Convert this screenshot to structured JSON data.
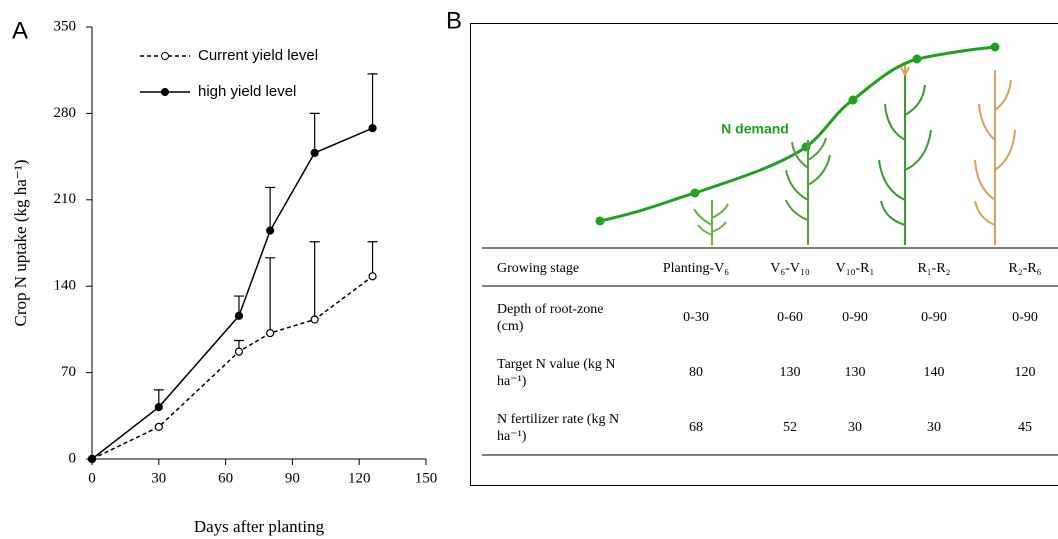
{
  "panel_labels": [
    "A",
    "B"
  ],
  "chart_data": {
    "type": "line",
    "x_label": "Days after planting",
    "y_label": "Crop N uptake (kg ha⁻¹)",
    "x": [
      0,
      30,
      66,
      80,
      100,
      126
    ],
    "xlim": [
      0,
      150
    ],
    "xticks": [
      0,
      30,
      60,
      90,
      120,
      150
    ],
    "ylim": [
      0,
      350
    ],
    "yticks": [
      0,
      70,
      140,
      210,
      280,
      350
    ],
    "legend": "upper left",
    "series": [
      {
        "name": "Current yield level",
        "color": "#000000",
        "line_style": "dashed",
        "marker": "open",
        "values": [
          0,
          26,
          87,
          102,
          113,
          148
        ],
        "errors": [
          null,
          null,
          9,
          61,
          63,
          28
        ]
      },
      {
        "name": "high yield level",
        "color": "#000000",
        "line_style": "solid",
        "marker": "filled",
        "values": [
          0,
          42,
          116,
          185,
          248,
          268
        ],
        "errors": [
          null,
          14,
          16,
          35,
          32,
          44
        ]
      }
    ]
  },
  "panel_b": {
    "curve_label": "N demand",
    "table": {
      "header": [
        "Growing stage",
        "Planting-V₆",
        "V₆-V₁₀",
        "V₁₀-R₁",
        "R₁-R₂",
        "R₂-R₆"
      ],
      "rows": [
        [
          "Depth of root-zone (cm)",
          "0-30",
          "0-60",
          "0-90",
          "0-90",
          "0-90"
        ],
        [
          "Target N value (kg N ha⁻¹)",
          "80",
          "130",
          "130",
          "140",
          "120"
        ],
        [
          "N fertilizer rate (kg N ha⁻¹)",
          "68",
          "52",
          "30",
          "30",
          "45"
        ]
      ]
    }
  }
}
